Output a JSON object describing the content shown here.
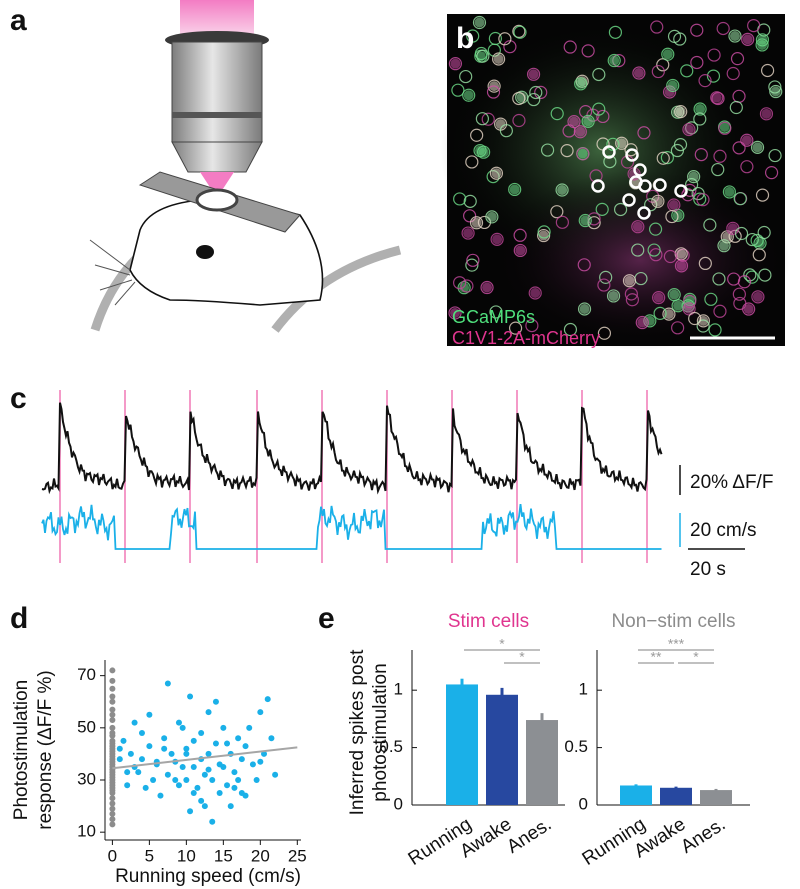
{
  "panel_labels": {
    "a": "a",
    "b": "b",
    "c": "c",
    "d": "d",
    "e": "e"
  },
  "image_labels": {
    "green": "GCaMP6s",
    "magenta": "C1V1-2A-mCherry"
  },
  "scale_bars": {
    "dff": "20% ΔF/F",
    "speed": "20 cm/s",
    "time": "20 s"
  },
  "chart_data": [
    {
      "type": "scatter",
      "ylabel": [
        "Photostimulation",
        "response (ΔF/F %)"
      ],
      "xlabel": "Running speed (cm/s)",
      "xlim": [
        -1,
        25.5
      ],
      "xticks": [
        0,
        5,
        10,
        15,
        20,
        25
      ],
      "ylim": [
        7,
        76
      ],
      "yticks": [
        10,
        30,
        50,
        70
      ],
      "series": [
        {
          "color": "#8c8c8c",
          "x": [
            0,
            0,
            0,
            0,
            0,
            0,
            0,
            0,
            0,
            0,
            0,
            0,
            0,
            0,
            0,
            0,
            0,
            0,
            0,
            0,
            0,
            0,
            0,
            0,
            0,
            0,
            0,
            0,
            0,
            0,
            0,
            0,
            0,
            0,
            0,
            0,
            0,
            0
          ],
          "values": [
            72,
            68,
            65,
            62,
            60,
            57,
            55,
            53,
            50,
            48,
            47,
            45,
            44,
            43,
            42,
            41,
            40,
            39,
            38,
            37,
            36,
            35,
            34,
            33,
            32,
            31,
            30,
            29,
            28,
            27,
            26,
            25,
            23,
            21,
            19,
            17,
            15,
            13
          ]
        },
        {
          "color": "#1ab0e8",
          "x": [
            1,
            1.5,
            2,
            2.5,
            3,
            3.5,
            4,
            4.5,
            5,
            5,
            5.5,
            6,
            6.5,
            7,
            7.5,
            7.5,
            8,
            8.5,
            9,
            9,
            9.5,
            10,
            10,
            10.5,
            10.5,
            11,
            11,
            11.5,
            12,
            12,
            12.5,
            13,
            13,
            13.5,
            13.5,
            14,
            14,
            14.5,
            15,
            15,
            15.5,
            16,
            16,
            16.5,
            17,
            17,
            17.5,
            18,
            18.5,
            19,
            19.5,
            20,
            20.5,
            21,
            21.5,
            22,
            6,
            7,
            8.5,
            3,
            12,
            14.5,
            16.5,
            18,
            11,
            9.5,
            4,
            2,
            1,
            13,
            15.5,
            17.5,
            20,
            10,
            12.5
          ],
          "values": [
            38,
            45,
            28,
            40,
            52,
            33,
            38,
            27,
            55,
            43,
            30,
            36,
            24,
            46,
            67,
            32,
            40,
            37,
            52,
            28,
            50,
            40,
            30,
            18,
            62,
            35,
            45,
            27,
            38,
            22,
            32,
            56,
            40,
            30,
            14,
            44,
            60,
            25,
            35,
            50,
            28,
            40,
            20,
            33,
            46,
            30,
            38,
            24,
            50,
            36,
            30,
            56,
            40,
            61,
            46,
            32,
            37,
            42,
            30,
            35,
            48,
            36,
            27,
            43,
            25,
            35,
            48,
            33,
            42,
            34,
            44,
            25,
            37,
            42,
            20
          ]
        }
      ],
      "fit": {
        "color": "#a6a6a6",
        "x": [
          0,
          25
        ],
        "values": [
          34.5,
          42.5
        ]
      }
    },
    {
      "type": "bar",
      "title": "Stim cells",
      "title_color": "#e0358f",
      "ylabel": [
        "Inferred spikes post",
        "photostimulation"
      ],
      "categories": [
        "Running",
        "Awake",
        "Anes."
      ],
      "values": [
        1.05,
        0.96,
        0.74
      ],
      "errors": [
        0.05,
        0.06,
        0.06
      ],
      "colors": [
        "#1ab0e8",
        "#2748a0",
        "#8c8f93"
      ],
      "ylim": [
        0,
        1.35
      ],
      "yticks": [
        0,
        0.5,
        1
      ],
      "significance": [
        {
          "from": 0,
          "to": 2,
          "label": "*"
        },
        {
          "from": 1,
          "to": 2,
          "label": "*"
        }
      ]
    },
    {
      "type": "bar",
      "title": "Non−stim cells",
      "title_color": "#8c8c8c",
      "categories": [
        "Running",
        "Awake",
        "Anes."
      ],
      "values": [
        0.17,
        0.15,
        0.13
      ],
      "errors": [
        0.01,
        0.01,
        0.01
      ],
      "colors": [
        "#1ab0e8",
        "#2748a0",
        "#8c8f93"
      ],
      "ylim": [
        0,
        1.35
      ],
      "yticks": [
        0,
        0.5,
        1
      ],
      "significance": [
        {
          "from": 0,
          "to": 2,
          "label": "***"
        },
        {
          "from": 0,
          "to": 1,
          "label": "**"
        },
        {
          "from": 1,
          "to": 2,
          "label": "*"
        }
      ]
    }
  ]
}
